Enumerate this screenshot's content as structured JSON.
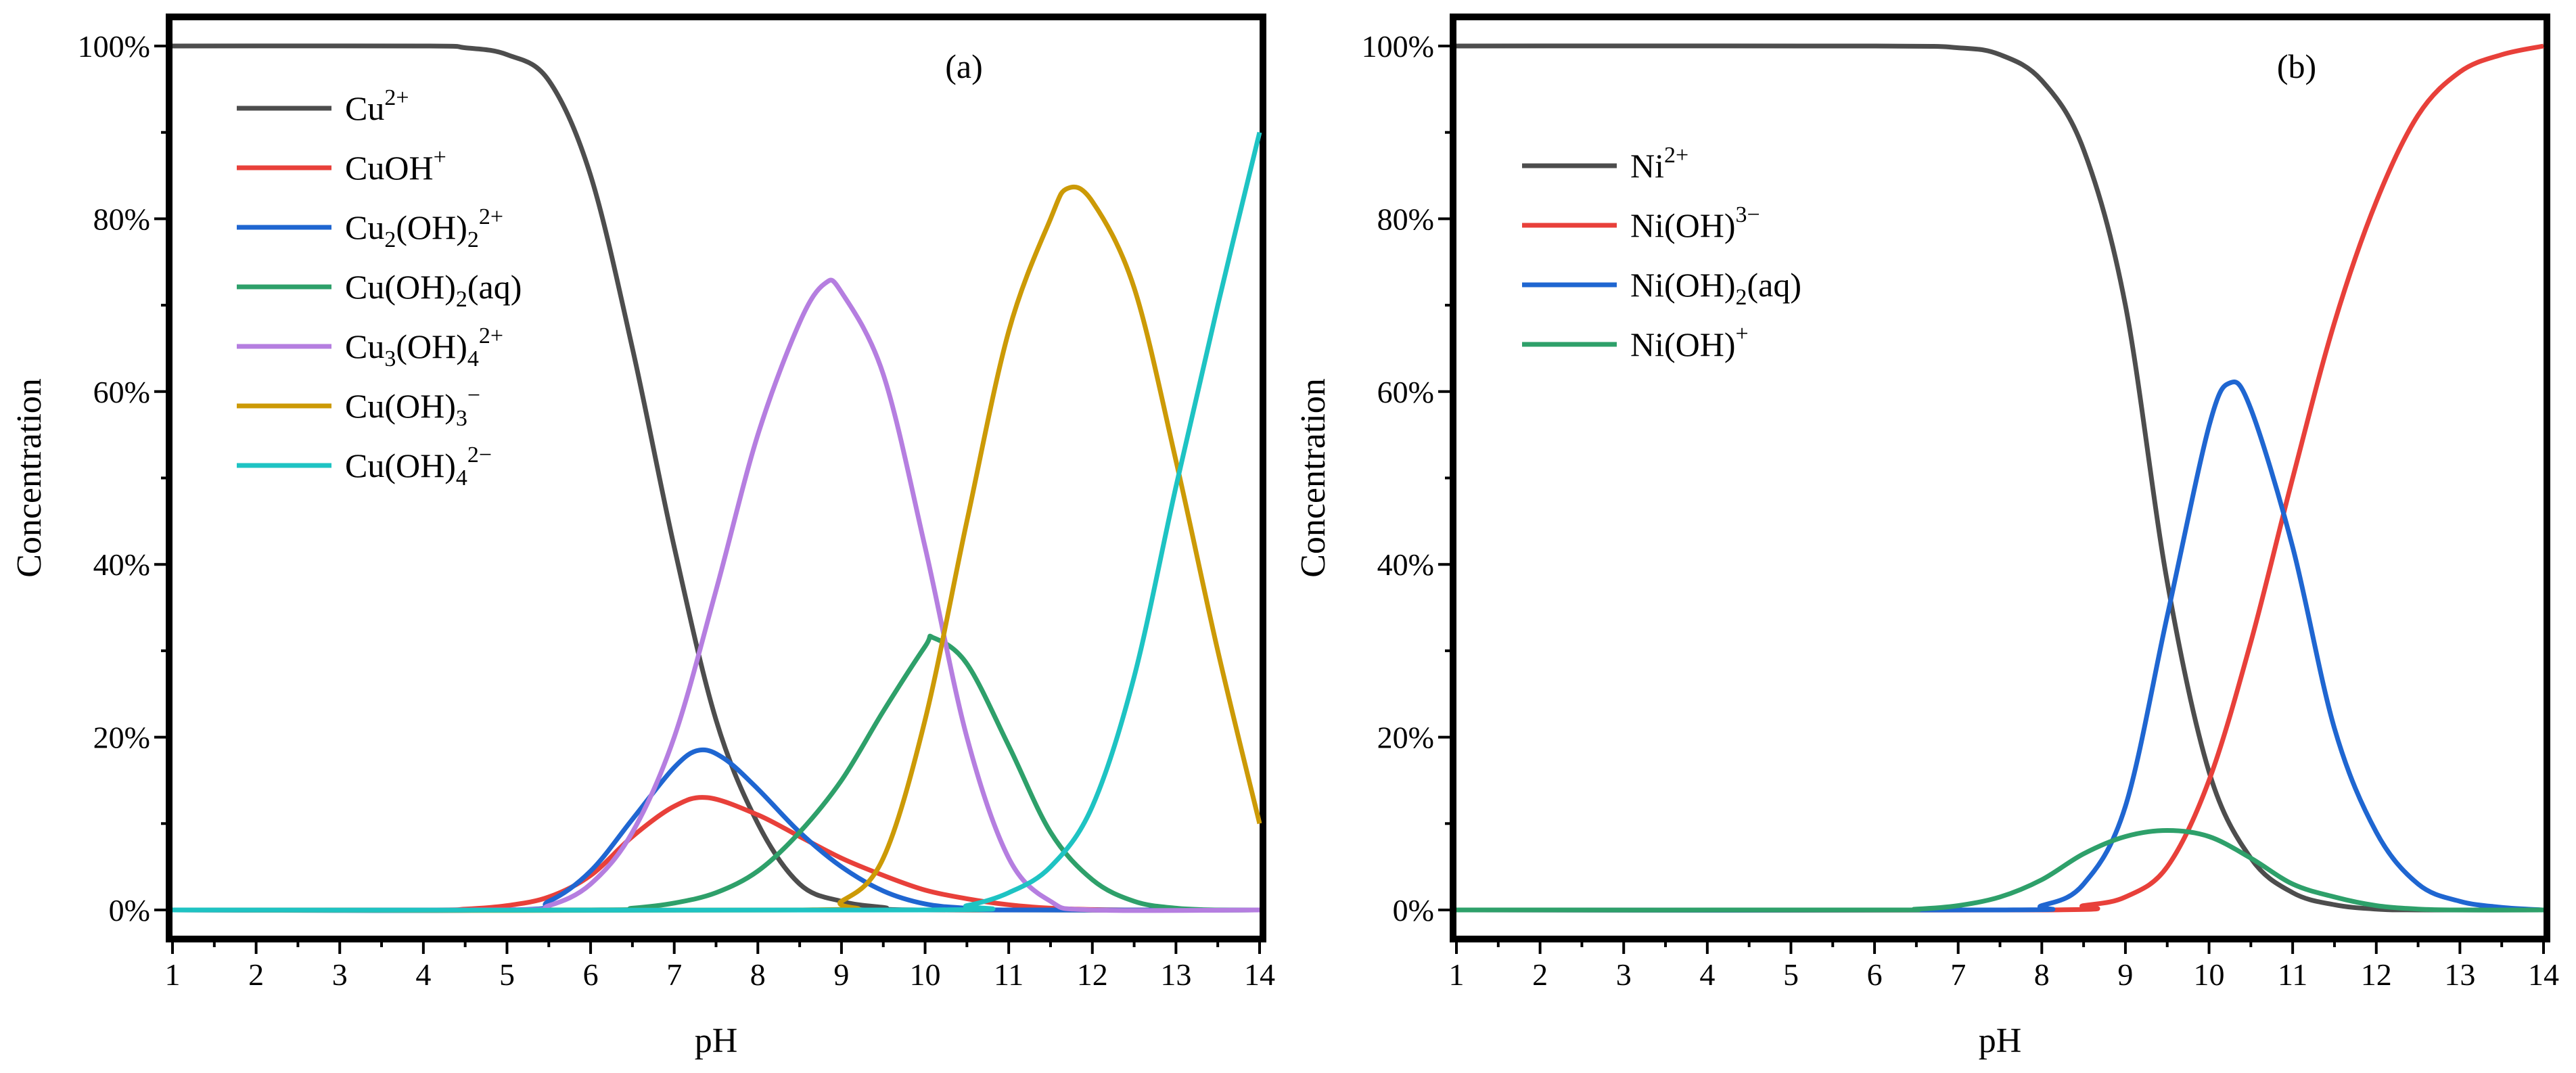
{
  "chart_data": [
    {
      "type": "line",
      "panel_label": "(a)",
      "xlabel": "pH",
      "ylabel": "Concentration",
      "xlim": [
        1,
        14
      ],
      "ylim": [
        0,
        100
      ],
      "x_ticks": [
        "1",
        "2",
        "3",
        "4",
        "5",
        "6",
        "7",
        "8",
        "9",
        "10",
        "11",
        "12",
        "13",
        "14"
      ],
      "y_ticks": [
        "0%",
        "20%",
        "40%",
        "60%",
        "80%",
        "100%"
      ],
      "legend_position": "top-left",
      "series": [
        {
          "name": "Cu2+",
          "label": {
            "base": "Cu",
            "parts": [
              {
                "t": "2+",
                "s": "sup"
              }
            ]
          },
          "color": "#4d4d4d",
          "points": [
            [
              1,
              100
            ],
            [
              4,
              100
            ],
            [
              4.5,
              99.8
            ],
            [
              5,
              99
            ],
            [
              5.5,
              96
            ],
            [
              6,
              85
            ],
            [
              6.5,
              65
            ],
            [
              7,
              42
            ],
            [
              7.5,
              22
            ],
            [
              8,
              10
            ],
            [
              8.5,
              3
            ],
            [
              9,
              1
            ],
            [
              9.5,
              0.3
            ],
            [
              10,
              0
            ],
            [
              14,
              0
            ]
          ]
        },
        {
          "name": "CuOH+",
          "label": {
            "base": "CuOH",
            "parts": [
              {
                "t": "+",
                "s": "sup"
              }
            ]
          },
          "color": "#e8403a",
          "points": [
            [
              1,
              0
            ],
            [
              4,
              0
            ],
            [
              4.5,
              0.1
            ],
            [
              5,
              0.5
            ],
            [
              5.5,
              1.5
            ],
            [
              6,
              4
            ],
            [
              6.5,
              8.5
            ],
            [
              7,
              12
            ],
            [
              7.4,
              13
            ],
            [
              8,
              11
            ],
            [
              8.5,
              8.5
            ],
            [
              9,
              6
            ],
            [
              9.5,
              4
            ],
            [
              10,
              2.3
            ],
            [
              10.5,
              1.3
            ],
            [
              11,
              0.6
            ],
            [
              11.5,
              0.2
            ],
            [
              12,
              0.05
            ],
            [
              12.5,
              0
            ],
            [
              14,
              0
            ]
          ]
        },
        {
          "name": "Cu2(OH)2 2+",
          "label": {
            "base": "Cu",
            "parts": [
              {
                "t": "2",
                "s": "sub"
              },
              {
                "t": "(OH)",
                "s": ""
              },
              {
                "t": "2",
                "s": "sub"
              },
              {
                "t": "2+",
                "s": "sup"
              }
            ]
          },
          "color": "#1f66d1",
          "points": [
            [
              1,
              0
            ],
            [
              5,
              0
            ],
            [
              5.5,
              1
            ],
            [
              6,
              4.5
            ],
            [
              6.5,
              10.5
            ],
            [
              7,
              16.5
            ],
            [
              7.3,
              18.5
            ],
            [
              7.6,
              17.5
            ],
            [
              8,
              14
            ],
            [
              8.5,
              9
            ],
            [
              9,
              5
            ],
            [
              9.5,
              2.2
            ],
            [
              10,
              0.7
            ],
            [
              10.5,
              0.2
            ],
            [
              11,
              0
            ],
            [
              14,
              0
            ]
          ]
        },
        {
          "name": "Cu(OH)2(aq)",
          "label": {
            "base": "Cu(OH)",
            "parts": [
              {
                "t": "2",
                "s": "sub"
              },
              {
                "t": "(aq)",
                "s": ""
              }
            ]
          },
          "color": "#2ea06a",
          "points": [
            [
              1,
              0
            ],
            [
              6,
              0
            ],
            [
              6.5,
              0.2
            ],
            [
              7,
              0.8
            ],
            [
              7.5,
              2
            ],
            [
              8,
              4.5
            ],
            [
              8.5,
              9
            ],
            [
              9,
              15
            ],
            [
              9.5,
              23
            ],
            [
              10,
              30.5
            ],
            [
              10.1,
              31.5
            ],
            [
              10.5,
              28.5
            ],
            [
              11,
              19
            ],
            [
              11.5,
              9
            ],
            [
              12,
              3.5
            ],
            [
              12.5,
              1
            ],
            [
              13,
              0.2
            ],
            [
              13.5,
              0
            ],
            [
              14,
              0
            ]
          ]
        },
        {
          "name": "Cu3(OH)4 2+",
          "label": {
            "base": "Cu",
            "parts": [
              {
                "t": "3",
                "s": "sub"
              },
              {
                "t": "(OH)",
                "s": ""
              },
              {
                "t": "4",
                "s": "sub"
              },
              {
                "t": "2+",
                "s": "sup"
              }
            ]
          },
          "color": "#b57ee0",
          "points": [
            [
              1,
              0
            ],
            [
              5,
              0
            ],
            [
              5.5,
              0.5
            ],
            [
              6,
              3
            ],
            [
              6.5,
              9
            ],
            [
              7,
              20
            ],
            [
              7.5,
              37
            ],
            [
              8,
              55
            ],
            [
              8.5,
              68
            ],
            [
              8.8,
              72.5
            ],
            [
              9,
              71.5
            ],
            [
              9.5,
              62
            ],
            [
              10,
              42
            ],
            [
              10.5,
              20
            ],
            [
              11,
              6
            ],
            [
              11.5,
              1
            ],
            [
              12,
              0
            ],
            [
              14,
              0
            ]
          ]
        },
        {
          "name": "Cu(OH)3-",
          "label": {
            "base": "Cu(OH)",
            "parts": [
              {
                "t": "3",
                "s": "sub"
              },
              {
                "t": "−",
                "s": "sup"
              }
            ]
          },
          "color": "#cc9a06",
          "points": [
            [
              1,
              0
            ],
            [
              8.5,
              0
            ],
            [
              9,
              1
            ],
            [
              9.5,
              6
            ],
            [
              10,
              22
            ],
            [
              10.5,
              45
            ],
            [
              11,
              67
            ],
            [
              11.5,
              80
            ],
            [
              11.7,
              83.5
            ],
            [
              12,
              82
            ],
            [
              12.5,
              72
            ],
            [
              13,
              52
            ],
            [
              13.5,
              30
            ],
            [
              14,
              10
            ]
          ]
        },
        {
          "name": "Cu(OH)4 2-",
          "label": {
            "base": "Cu(OH)",
            "parts": [
              {
                "t": "4",
                "s": "sub"
              },
              {
                "t": "2−",
                "s": "sup"
              }
            ]
          },
          "color": "#1ec3c3",
          "points": [
            [
              1,
              0
            ],
            [
              10,
              0
            ],
            [
              10.5,
              0.5
            ],
            [
              11,
              2
            ],
            [
              11.5,
              5
            ],
            [
              12,
              12
            ],
            [
              12.5,
              27
            ],
            [
              13,
              49
            ],
            [
              13.5,
              70
            ],
            [
              14,
              90
            ]
          ]
        }
      ]
    },
    {
      "type": "line",
      "panel_label": "(b)",
      "xlabel": "pH",
      "ylabel": "Concentration",
      "xlim": [
        1,
        14
      ],
      "ylim": [
        0,
        100
      ],
      "x_ticks": [
        "1",
        "2",
        "3",
        "4",
        "5",
        "6",
        "7",
        "8",
        "9",
        "10",
        "11",
        "12",
        "13",
        "14"
      ],
      "y_ticks": [
        "0%",
        "20%",
        "40%",
        "60%",
        "80%",
        "100%"
      ],
      "legend_position": "top-left",
      "series": [
        {
          "name": "Ni2+",
          "label": {
            "base": "Ni",
            "parts": [
              {
                "t": "2+",
                "s": "sup"
              }
            ]
          },
          "color": "#4d4d4d",
          "points": [
            [
              1,
              100
            ],
            [
              6,
              100
            ],
            [
              7,
              99.8
            ],
            [
              7.5,
              99
            ],
            [
              8,
              96
            ],
            [
              8.5,
              88
            ],
            [
              9,
              70
            ],
            [
              9.5,
              38
            ],
            [
              10,
              16
            ],
            [
              10.5,
              6
            ],
            [
              11,
              2
            ],
            [
              11.5,
              0.6
            ],
            [
              12,
              0.1
            ],
            [
              12.5,
              0
            ],
            [
              14,
              0
            ]
          ]
        },
        {
          "name": "Ni(OH)3-",
          "label": {
            "base": "Ni(OH)",
            "parts": [
              {
                "t": "3−",
                "s": "sup"
              }
            ]
          },
          "color": "#e8403a",
          "points": [
            [
              1,
              0
            ],
            [
              8,
              0
            ],
            [
              8.5,
              0.5
            ],
            [
              9,
              1.5
            ],
            [
              9.5,
              5
            ],
            [
              10,
              15
            ],
            [
              10.5,
              31
            ],
            [
              11,
              50
            ],
            [
              11.5,
              68
            ],
            [
              12,
              82
            ],
            [
              12.5,
              92
            ],
            [
              13,
              97
            ],
            [
              13.5,
              99
            ],
            [
              14,
              100
            ]
          ]
        },
        {
          "name": "Ni(OH)2(aq)",
          "label": {
            "base": "Ni(OH)",
            "parts": [
              {
                "t": "2",
                "s": "sub"
              },
              {
                "t": "(aq)",
                "s": ""
              }
            ]
          },
          "color": "#1f66d1",
          "points": [
            [
              1,
              0
            ],
            [
              7.5,
              0
            ],
            [
              8,
              0.5
            ],
            [
              8.5,
              3
            ],
            [
              9,
              12
            ],
            [
              9.5,
              34
            ],
            [
              10,
              56
            ],
            [
              10.25,
              61
            ],
            [
              10.5,
              58
            ],
            [
              11,
              42
            ],
            [
              11.5,
              21
            ],
            [
              12,
              9
            ],
            [
              12.5,
              3
            ],
            [
              13,
              1
            ],
            [
              13.5,
              0.3
            ],
            [
              14,
              0
            ]
          ]
        },
        {
          "name": "Ni(OH)+",
          "label": {
            "base": "Ni(OH)",
            "parts": [
              {
                "t": "+",
                "s": "sup"
              }
            ]
          },
          "color": "#2ea06a",
          "points": [
            [
              1,
              0
            ],
            [
              6,
              0
            ],
            [
              6.5,
              0.1
            ],
            [
              7,
              0.5
            ],
            [
              7.5,
              1.5
            ],
            [
              8,
              3.5
            ],
            [
              8.5,
              6.5
            ],
            [
              9,
              8.5
            ],
            [
              9.5,
              9.2
            ],
            [
              10,
              8.5
            ],
            [
              10.5,
              6
            ],
            [
              11,
              3
            ],
            [
              11.5,
              1.5
            ],
            [
              12,
              0.5
            ],
            [
              12.5,
              0.1
            ],
            [
              13,
              0
            ],
            [
              14,
              0
            ]
          ]
        }
      ]
    }
  ]
}
